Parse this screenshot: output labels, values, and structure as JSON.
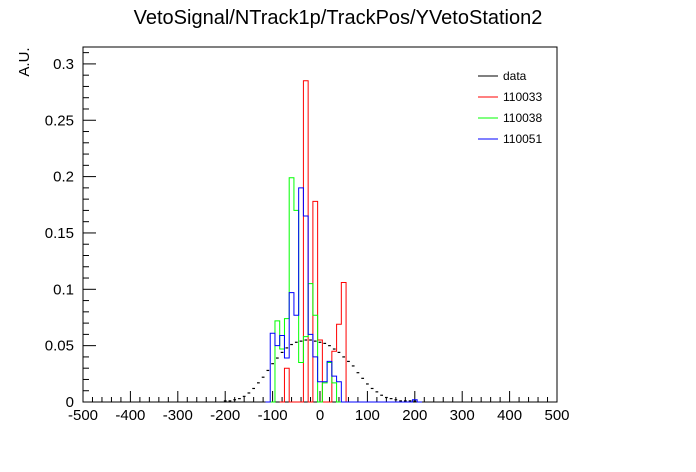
{
  "chart_data": {
    "type": "histogram",
    "title": "VetoSignal/NTrack1p/TrackPos/YVetoStation2",
    "xlabel": "",
    "ylabel": "A.U.",
    "xlim": [
      -500,
      500
    ],
    "ylim": [
      0,
      0.315
    ],
    "bin_width": 10,
    "xticks": [
      "-500",
      "-400",
      "-300",
      "-200",
      "-100",
      "0",
      "100",
      "200",
      "300",
      "400",
      "500"
    ],
    "yticks": [
      "0",
      "0.05",
      "0.1",
      "0.15",
      "0.2",
      "0.25",
      "0.3"
    ],
    "legend_position": "top-right",
    "series": [
      {
        "name": "data",
        "color": "#000000",
        "style": "markers",
        "x": [
          -200,
          -190,
          -180,
          -170,
          -160,
          -150,
          -140,
          -130,
          -120,
          -110,
          -100,
          -90,
          -80,
          -70,
          -60,
          -50,
          -40,
          -30,
          -20,
          -10,
          0,
          10,
          20,
          30,
          40,
          50,
          60,
          70,
          80,
          90,
          100,
          110,
          120,
          130,
          140,
          150,
          160,
          170,
          180,
          190,
          200
        ],
        "values": [
          0.001,
          0.001,
          0.002,
          0.003,
          0.005,
          0.008,
          0.012,
          0.017,
          0.022,
          0.028,
          0.034,
          0.039,
          0.044,
          0.048,
          0.051,
          0.053,
          0.054,
          0.055,
          0.055,
          0.054,
          0.053,
          0.052,
          0.05,
          0.047,
          0.044,
          0.04,
          0.036,
          0.032,
          0.026,
          0.021,
          0.016,
          0.012,
          0.009,
          0.006,
          0.004,
          0.003,
          0.002,
          0.001,
          0.001,
          0.001,
          0.001
        ]
      },
      {
        "name": "110033",
        "color": "#ff0000",
        "style": "step",
        "x": [
          -80,
          -70,
          -60,
          -50,
          -40,
          -30,
          -20,
          -10,
          0,
          10,
          20,
          30,
          40,
          50,
          60,
          70
        ],
        "values": [
          0.0,
          0.03,
          0.0,
          0.0,
          0.0,
          0.285,
          0.0,
          0.178,
          0.055,
          0.0,
          0.0,
          0.045,
          0.069,
          0.106,
          0.0,
          0.0
        ]
      },
      {
        "name": "110038",
        "color": "#00ff00",
        "style": "step",
        "x": [
          -100,
          -90,
          -80,
          -70,
          -60,
          -50,
          -40,
          -30,
          -20,
          -10,
          0,
          10,
          20,
          30,
          40,
          50,
          60,
          70
        ],
        "values": [
          0.0,
          0.072,
          0.047,
          0.074,
          0.199,
          0.17,
          0.035,
          0.058,
          0.105,
          0.077,
          0.0,
          0.017,
          0.035,
          0.017,
          0.0,
          0.0,
          0.0,
          0.0
        ]
      },
      {
        "name": "110051",
        "color": "#0000ff",
        "style": "step",
        "x": [
          -110,
          -100,
          -90,
          -80,
          -70,
          -60,
          -50,
          -40,
          -30,
          -20,
          -10,
          0,
          10,
          20,
          30,
          40,
          50,
          60,
          70,
          80,
          90,
          100,
          110,
          120,
          130,
          140,
          150,
          160,
          170,
          180,
          190,
          200,
          210
        ],
        "values": [
          0.0,
          0.061,
          0.05,
          0.059,
          0.039,
          0.097,
          0.077,
          0.19,
          0.165,
          0.06,
          0.04,
          0.018,
          0.018,
          0.036,
          0.023,
          0.018,
          0.0,
          0.0,
          0.0,
          0.0,
          0.0,
          0.0,
          0.0,
          0.0,
          0.0,
          0.0,
          0.0,
          0.0,
          0.0,
          0.0,
          0.0,
          0.002,
          0.0
        ]
      }
    ]
  }
}
